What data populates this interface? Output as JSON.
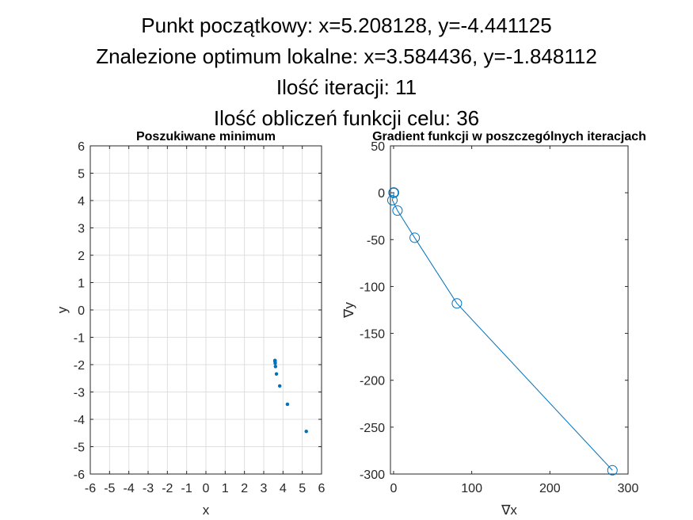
{
  "header": {
    "line1": "Punkt początkowy: x=5.208128, y=-4.441125",
    "line2": "Znalezione optimum lokalne: x=3.584436, y=-1.848112",
    "line3": "Ilość iteracji: 11",
    "line4": "Ilość obliczeń funkcji celu: 36"
  },
  "chart_data": [
    {
      "type": "scatter",
      "title": "Poszukiwane minimum",
      "xlabel": "x",
      "ylabel": "y",
      "xlim": [
        -6,
        6
      ],
      "ylim": [
        -6,
        6
      ],
      "xticks": [
        -6,
        -5,
        -4,
        -3,
        -2,
        -1,
        0,
        1,
        2,
        3,
        4,
        5,
        6
      ],
      "yticks": [
        -6,
        -5,
        -4,
        -3,
        -2,
        -1,
        0,
        1,
        2,
        3,
        4,
        5,
        6
      ],
      "grid": true,
      "color": "#0072BD",
      "points": [
        {
          "x": 5.208128,
          "y": -4.441125
        },
        {
          "x": 4.23,
          "y": -3.45
        },
        {
          "x": 3.83,
          "y": -2.78
        },
        {
          "x": 3.66,
          "y": -2.34
        },
        {
          "x": 3.61,
          "y": -2.07
        },
        {
          "x": 3.595,
          "y": -1.95
        },
        {
          "x": 3.589,
          "y": -1.89
        },
        {
          "x": 3.586,
          "y": -1.87
        },
        {
          "x": 3.585,
          "y": -1.855
        },
        {
          "x": 3.5845,
          "y": -1.85
        },
        {
          "x": 3.584436,
          "y": -1.848112
        }
      ]
    },
    {
      "type": "line",
      "title": "Gradient funkcji w  poszczególnych iteracjach",
      "xlabel": "∇x",
      "ylabel": "∇y",
      "xlim": [
        -4,
        300
      ],
      "ylim": [
        -300,
        50
      ],
      "xticks": [
        0,
        100,
        200,
        300
      ],
      "yticks": [
        -300,
        -250,
        -200,
        -150,
        -100,
        -50,
        0,
        50
      ],
      "grid": false,
      "marker": "circle",
      "color": "#0072BD",
      "points": [
        {
          "x": 280,
          "y": -296
        },
        {
          "x": 81,
          "y": -118
        },
        {
          "x": 27,
          "y": -48
        },
        {
          "x": 5,
          "y": -19
        },
        {
          "x": -1.5,
          "y": -8
        },
        {
          "x": 0.5,
          "y": 0
        },
        {
          "x": 0.2,
          "y": 0.3
        },
        {
          "x": 0.1,
          "y": 0.1
        },
        {
          "x": 0.05,
          "y": 0.05
        },
        {
          "x": 0.02,
          "y": 0.02
        },
        {
          "x": 0.01,
          "y": 0.01
        }
      ]
    }
  ]
}
